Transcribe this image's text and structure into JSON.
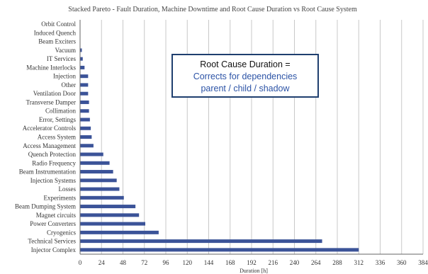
{
  "annotation": {
    "heading": "Root Cause Duration =",
    "line1": "Corrects for dependencies",
    "line2": "parent / child / shadow"
  },
  "chart_data": {
    "type": "bar",
    "orientation": "horizontal",
    "title": "Stacked Pareto - Fault Duration, Machine Downtime and Root Cause Duration vs Root Cause System",
    "xlabel": "Duration [h]",
    "ylabel": "",
    "xlim": [
      0,
      384
    ],
    "xticks": [
      0,
      24,
      48,
      72,
      96,
      120,
      144,
      168,
      192,
      216,
      240,
      264,
      288,
      312,
      336,
      360,
      384
    ],
    "grid": "vertical",
    "bar_color": "#3b5398",
    "categories": [
      "Orbit Control",
      "Induced Quench",
      "Beam Exciters",
      "Vacuum",
      "IT Services",
      "Machine Interlocks",
      "Injection",
      "Other",
      "Ventilation Door",
      "Transverse Damper",
      "Collimation",
      "Error, Settings",
      "Accelerator Controls",
      "Access System",
      "Access Management",
      "Quench Protection",
      "Radio Frequency",
      "Beam Instrumentation",
      "Injection Systems",
      "Losses",
      "Experiments",
      "Beam Dumping System",
      "Magnet circuits",
      "Power Converters",
      "Cryogenics",
      "Technical Services",
      "Injector Complex"
    ],
    "values": [
      0,
      0,
      0,
      2,
      3,
      5,
      9,
      9,
      9,
      10,
      10,
      11,
      12,
      13,
      15,
      26,
      33,
      37,
      41,
      44,
      49,
      62,
      66,
      73,
      88,
      271,
      312
    ]
  }
}
